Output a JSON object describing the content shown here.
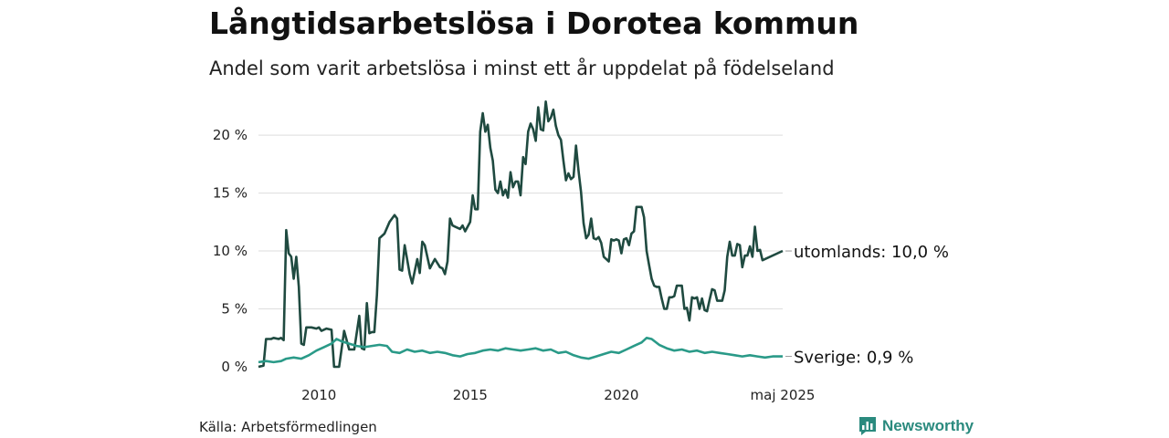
{
  "header": {
    "title": "Långtidsarbetslösa i Dorotea kommun",
    "subtitle": "Andel som varit arbetslösa i minst ett år uppdelat på födelseland"
  },
  "footer": {
    "source": "Källa: Arbetsförmedlingen",
    "brand": "Newsworthy",
    "brand_icon": "bar-chart-logo-icon"
  },
  "colors": {
    "utomlands": "#1f4a40",
    "sverige": "#2a9a88",
    "grid": "#dddddd",
    "brand": "#2a8a7e"
  },
  "chart_data": {
    "type": "line",
    "title": "Långtidsarbetslösa i Dorotea kommun",
    "subtitle": "Andel som varit arbetslösa i minst ett år uppdelat på födelseland",
    "x_ticks": [
      "2010",
      "2015",
      "2020",
      "maj 2025"
    ],
    "y_ticks": [
      "0 %",
      "5 %",
      "10 %",
      "15 %",
      "20 %"
    ],
    "y_tick_values": [
      0,
      5,
      10,
      15,
      20
    ],
    "xlim": [
      "2008-01",
      "2025-05"
    ],
    "ylim": [
      0,
      23
    ],
    "grid": true,
    "end_labels": [
      {
        "series": "utomlands",
        "text": "utomlands: 10,0 %"
      },
      {
        "series": "sverige",
        "text": "Sverige:  0,9 %"
      }
    ],
    "series": [
      {
        "name": "utomlands",
        "points": [
          [
            "2008-01",
            0
          ],
          [
            "2008-03",
            0.1
          ],
          [
            "2008-04",
            2.4
          ],
          [
            "2008-06",
            2.4
          ],
          [
            "2008-07",
            2.5
          ],
          [
            "2008-09",
            2.4
          ],
          [
            "2008-10",
            2.5
          ],
          [
            "2008-11",
            2.3
          ],
          [
            "2008-12",
            11.8
          ],
          [
            "2009-01",
            9.8
          ],
          [
            "2009-02",
            9.5
          ],
          [
            "2009-03",
            7.6
          ],
          [
            "2009-04",
            9.5
          ],
          [
            "2009-05",
            6.9
          ],
          [
            "2009-06",
            2.0
          ],
          [
            "2009-07",
            1.9
          ],
          [
            "2009-08",
            3.4
          ],
          [
            "2009-10",
            3.4
          ],
          [
            "2009-12",
            3.3
          ],
          [
            "2010-01",
            3.4
          ],
          [
            "2010-02",
            3.1
          ],
          [
            "2010-04",
            3.3
          ],
          [
            "2010-06",
            3.2
          ],
          [
            "2010-07",
            0
          ],
          [
            "2010-09",
            0
          ],
          [
            "2010-11",
            3.1
          ],
          [
            "2011-01",
            1.5
          ],
          [
            "2011-03",
            1.5
          ],
          [
            "2011-05",
            4.4
          ],
          [
            "2011-06",
            1.6
          ],
          [
            "2011-07",
            1.5
          ],
          [
            "2011-08",
            5.5
          ],
          [
            "2011-09",
            2.9
          ],
          [
            "2011-10",
            3.0
          ],
          [
            "2011-11",
            3.0
          ],
          [
            "2011-12",
            6.2
          ],
          [
            "2012-01",
            11.1
          ],
          [
            "2012-03",
            11.5
          ],
          [
            "2012-05",
            12.5
          ],
          [
            "2012-07",
            13.1
          ],
          [
            "2012-08",
            12.8
          ],
          [
            "2012-09",
            8.4
          ],
          [
            "2012-10",
            8.3
          ],
          [
            "2012-11",
            10.5
          ],
          [
            "2013-01",
            8.0
          ],
          [
            "2013-02",
            7.2
          ],
          [
            "2013-04",
            9.3
          ],
          [
            "2013-05",
            8.1
          ],
          [
            "2013-06",
            10.8
          ],
          [
            "2013-07",
            10.5
          ],
          [
            "2013-09",
            8.5
          ],
          [
            "2013-10",
            8.9
          ],
          [
            "2013-11",
            9.3
          ],
          [
            "2014-01",
            8.6
          ],
          [
            "2014-02",
            8.5
          ],
          [
            "2014-03",
            8.0
          ],
          [
            "2014-04",
            9.1
          ],
          [
            "2014-05",
            12.8
          ],
          [
            "2014-06",
            12.2
          ],
          [
            "2014-07",
            12.1
          ],
          [
            "2014-09",
            11.9
          ],
          [
            "2014-10",
            12.2
          ],
          [
            "2014-11",
            11.7
          ],
          [
            "2015-01",
            12.5
          ],
          [
            "2015-02",
            14.8
          ],
          [
            "2015-03",
            13.6
          ],
          [
            "2015-04",
            13.6
          ],
          [
            "2015-05",
            20.3
          ],
          [
            "2015-06",
            21.9
          ],
          [
            "2015-07",
            20.3
          ],
          [
            "2015-08",
            20.9
          ],
          [
            "2015-09",
            18.9
          ],
          [
            "2015-10",
            17.8
          ],
          [
            "2015-11",
            15.3
          ],
          [
            "2015-12",
            15.0
          ],
          [
            "2016-01",
            16.0
          ],
          [
            "2016-02",
            14.8
          ],
          [
            "2016-03",
            15.3
          ],
          [
            "2016-04",
            14.6
          ],
          [
            "2016-05",
            16.8
          ],
          [
            "2016-06",
            15.5
          ],
          [
            "2016-07",
            16.0
          ],
          [
            "2016-08",
            16.0
          ],
          [
            "2016-09",
            14.8
          ],
          [
            "2016-10",
            18.1
          ],
          [
            "2016-11",
            17.5
          ],
          [
            "2016-12",
            20.3
          ],
          [
            "2017-01",
            21.0
          ],
          [
            "2017-02",
            20.5
          ],
          [
            "2017-03",
            19.5
          ],
          [
            "2017-04",
            22.4
          ],
          [
            "2017-05",
            20.5
          ],
          [
            "2017-06",
            20.4
          ],
          [
            "2017-07",
            22.9
          ],
          [
            "2017-08",
            21.2
          ],
          [
            "2017-09",
            21.5
          ],
          [
            "2017-10",
            22.2
          ],
          [
            "2017-11",
            20.8
          ],
          [
            "2017-12",
            20.0
          ],
          [
            "2018-01",
            19.6
          ],
          [
            "2018-02",
            17.8
          ],
          [
            "2018-03",
            16.1
          ],
          [
            "2018-04",
            16.7
          ],
          [
            "2018-05",
            16.2
          ],
          [
            "2018-06",
            16.4
          ],
          [
            "2018-07",
            19.1
          ],
          [
            "2018-08",
            16.9
          ],
          [
            "2018-09",
            15.1
          ],
          [
            "2018-10",
            12.4
          ],
          [
            "2018-11",
            11.1
          ],
          [
            "2018-12",
            11.4
          ],
          [
            "2019-01",
            12.8
          ],
          [
            "2019-02",
            11.1
          ],
          [
            "2019-03",
            11.0
          ],
          [
            "2019-04",
            11.2
          ],
          [
            "2019-05",
            10.7
          ],
          [
            "2019-06",
            9.5
          ],
          [
            "2019-07",
            9.3
          ],
          [
            "2019-08",
            9.1
          ],
          [
            "2019-09",
            11.0
          ],
          [
            "2019-10",
            10.9
          ],
          [
            "2019-11",
            11.0
          ],
          [
            "2019-12",
            10.9
          ],
          [
            "2020-01",
            9.8
          ],
          [
            "2020-02",
            11.0
          ],
          [
            "2020-03",
            11.1
          ],
          [
            "2020-04",
            10.5
          ],
          [
            "2020-05",
            11.5
          ],
          [
            "2020-06",
            11.7
          ],
          [
            "2020-07",
            13.8
          ],
          [
            "2020-08",
            13.8
          ],
          [
            "2020-09",
            13.8
          ],
          [
            "2020-10",
            12.9
          ],
          [
            "2020-11",
            10.0
          ],
          [
            "2020-12",
            8.8
          ],
          [
            "2021-01",
            7.6
          ],
          [
            "2021-02",
            7.0
          ],
          [
            "2021-03",
            6.9
          ],
          [
            "2021-04",
            6.9
          ],
          [
            "2021-05",
            5.9
          ],
          [
            "2021-06",
            5.0
          ],
          [
            "2021-07",
            5.0
          ],
          [
            "2021-08",
            6.0
          ],
          [
            "2021-09",
            6.0
          ],
          [
            "2021-10",
            6.1
          ],
          [
            "2021-11",
            7.0
          ],
          [
            "2021-12",
            7.0
          ],
          [
            "2022-01",
            7.0
          ],
          [
            "2022-02",
            5.0
          ],
          [
            "2022-03",
            5.1
          ],
          [
            "2022-04",
            4.0
          ],
          [
            "2022-05",
            6.0
          ],
          [
            "2022-06",
            5.9
          ],
          [
            "2022-07",
            6.0
          ],
          [
            "2022-08",
            5.0
          ],
          [
            "2022-09",
            5.9
          ],
          [
            "2022-10",
            4.9
          ],
          [
            "2022-11",
            4.8
          ],
          [
            "2022-12",
            5.8
          ],
          [
            "2023-01",
            6.7
          ],
          [
            "2023-02",
            6.6
          ],
          [
            "2023-03",
            5.7
          ],
          [
            "2023-04",
            5.7
          ],
          [
            "2023-05",
            5.7
          ],
          [
            "2023-06",
            6.6
          ],
          [
            "2023-07",
            9.5
          ],
          [
            "2023-08",
            10.8
          ],
          [
            "2023-09",
            9.6
          ],
          [
            "2023-10",
            9.6
          ],
          [
            "2023-11",
            10.6
          ],
          [
            "2023-12",
            10.5
          ],
          [
            "2024-01",
            8.6
          ],
          [
            "2024-02",
            9.6
          ],
          [
            "2024-03",
            9.6
          ],
          [
            "2024-04",
            10.4
          ],
          [
            "2024-05",
            9.5
          ],
          [
            "2024-06",
            12.1
          ],
          [
            "2024-07",
            10.0
          ],
          [
            "2024-08",
            10.1
          ],
          [
            "2024-09",
            9.2
          ],
          [
            "2025-05",
            10.0
          ]
        ]
      },
      {
        "name": "Sverige",
        "points": [
          [
            "2008-01",
            0.4
          ],
          [
            "2008-04",
            0.5
          ],
          [
            "2008-07",
            0.4
          ],
          [
            "2008-10",
            0.5
          ],
          [
            "2008-12",
            0.7
          ],
          [
            "2009-03",
            0.8
          ],
          [
            "2009-06",
            0.7
          ],
          [
            "2009-09",
            1.0
          ],
          [
            "2009-12",
            1.4
          ],
          [
            "2010-03",
            1.7
          ],
          [
            "2010-06",
            2.0
          ],
          [
            "2010-08",
            2.4
          ],
          [
            "2010-10",
            2.2
          ],
          [
            "2011-01",
            2.0
          ],
          [
            "2011-04",
            1.8
          ],
          [
            "2011-07",
            1.7
          ],
          [
            "2011-10",
            1.8
          ],
          [
            "2012-01",
            1.9
          ],
          [
            "2012-04",
            1.8
          ],
          [
            "2012-06",
            1.3
          ],
          [
            "2012-09",
            1.2
          ],
          [
            "2012-12",
            1.5
          ],
          [
            "2013-03",
            1.3
          ],
          [
            "2013-06",
            1.4
          ],
          [
            "2013-09",
            1.2
          ],
          [
            "2013-12",
            1.3
          ],
          [
            "2014-03",
            1.2
          ],
          [
            "2014-06",
            1.0
          ],
          [
            "2014-09",
            0.9
          ],
          [
            "2014-12",
            1.1
          ],
          [
            "2015-03",
            1.2
          ],
          [
            "2015-06",
            1.4
          ],
          [
            "2015-09",
            1.5
          ],
          [
            "2015-12",
            1.4
          ],
          [
            "2016-03",
            1.6
          ],
          [
            "2016-06",
            1.5
          ],
          [
            "2016-09",
            1.4
          ],
          [
            "2016-12",
            1.5
          ],
          [
            "2017-03",
            1.6
          ],
          [
            "2017-06",
            1.4
          ],
          [
            "2017-09",
            1.5
          ],
          [
            "2017-12",
            1.2
          ],
          [
            "2018-03",
            1.3
          ],
          [
            "2018-06",
            1.0
          ],
          [
            "2018-09",
            0.8
          ],
          [
            "2018-12",
            0.7
          ],
          [
            "2019-03",
            0.9
          ],
          [
            "2019-06",
            1.1
          ],
          [
            "2019-09",
            1.3
          ],
          [
            "2019-12",
            1.2
          ],
          [
            "2020-03",
            1.5
          ],
          [
            "2020-06",
            1.8
          ],
          [
            "2020-09",
            2.1
          ],
          [
            "2020-11",
            2.5
          ],
          [
            "2021-01",
            2.4
          ],
          [
            "2021-04",
            1.9
          ],
          [
            "2021-07",
            1.6
          ],
          [
            "2021-10",
            1.4
          ],
          [
            "2022-01",
            1.5
          ],
          [
            "2022-04",
            1.3
          ],
          [
            "2022-07",
            1.4
          ],
          [
            "2022-10",
            1.2
          ],
          [
            "2023-01",
            1.3
          ],
          [
            "2023-04",
            1.2
          ],
          [
            "2023-07",
            1.1
          ],
          [
            "2023-10",
            1.0
          ],
          [
            "2024-01",
            0.9
          ],
          [
            "2024-04",
            1.0
          ],
          [
            "2024-07",
            0.9
          ],
          [
            "2024-10",
            0.8
          ],
          [
            "2025-01",
            0.9
          ],
          [
            "2025-05",
            0.9
          ]
        ]
      }
    ]
  }
}
